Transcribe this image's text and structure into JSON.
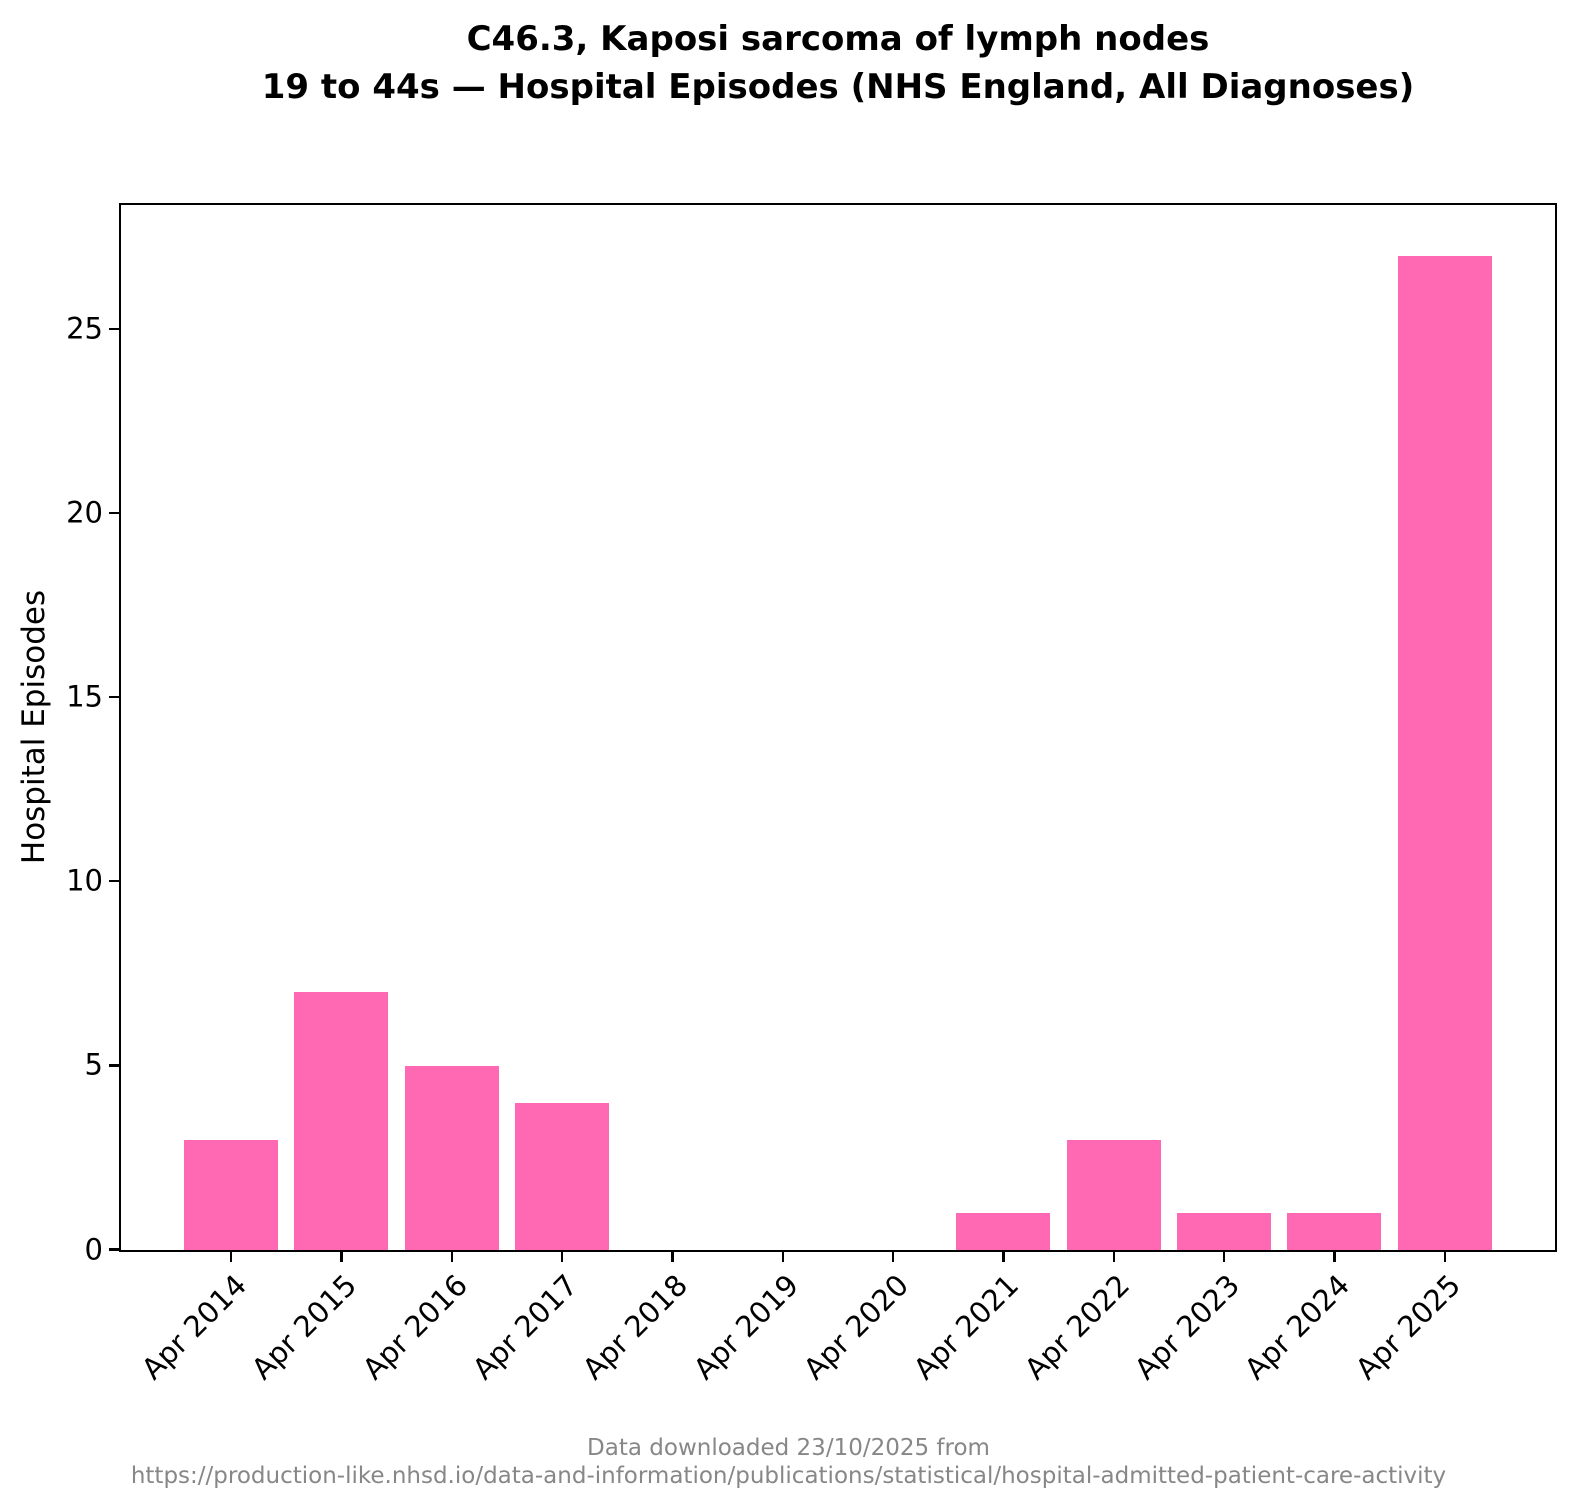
{
  "title": {
    "line1": "C46.3, Kaposi sarcoma of lymph nodes",
    "line2": "19 to 44s — Hospital Episodes (NHS England, All Diagnoses)"
  },
  "footer": {
    "line1": "Data downloaded 23/10/2025 from",
    "line2": "https://production-like.nhsd.io/data-and-information/publications/statistical/hospital-admitted-patient-care-activity"
  },
  "colors": {
    "bar": "#ff69b4",
    "axis": "#000000",
    "text": "#000000",
    "footer_text": "#878787"
  },
  "chart_data": {
    "type": "bar",
    "categories": [
      "Apr 2014",
      "Apr 2015",
      "Apr 2016",
      "Apr 2017",
      "Apr 2018",
      "Apr 2019",
      "Apr 2020",
      "Apr 2021",
      "Apr 2022",
      "Apr 2023",
      "Apr 2024",
      "Apr 2025"
    ],
    "values": [
      3,
      7,
      5,
      4,
      0,
      0,
      0,
      1,
      3,
      1,
      1,
      27
    ],
    "title": "C46.3, Kaposi sarcoma of lymph nodes\n19 to 44s — Hospital Episodes (NHS England, All Diagnoses)",
    "xlabel": "",
    "ylabel": "Hospital Episodes",
    "yticks": [
      0,
      5,
      10,
      15,
      20,
      25
    ],
    "ylim": [
      0,
      28.35
    ],
    "xtick_rotation_deg": 45,
    "grid": false,
    "legend": "none"
  }
}
